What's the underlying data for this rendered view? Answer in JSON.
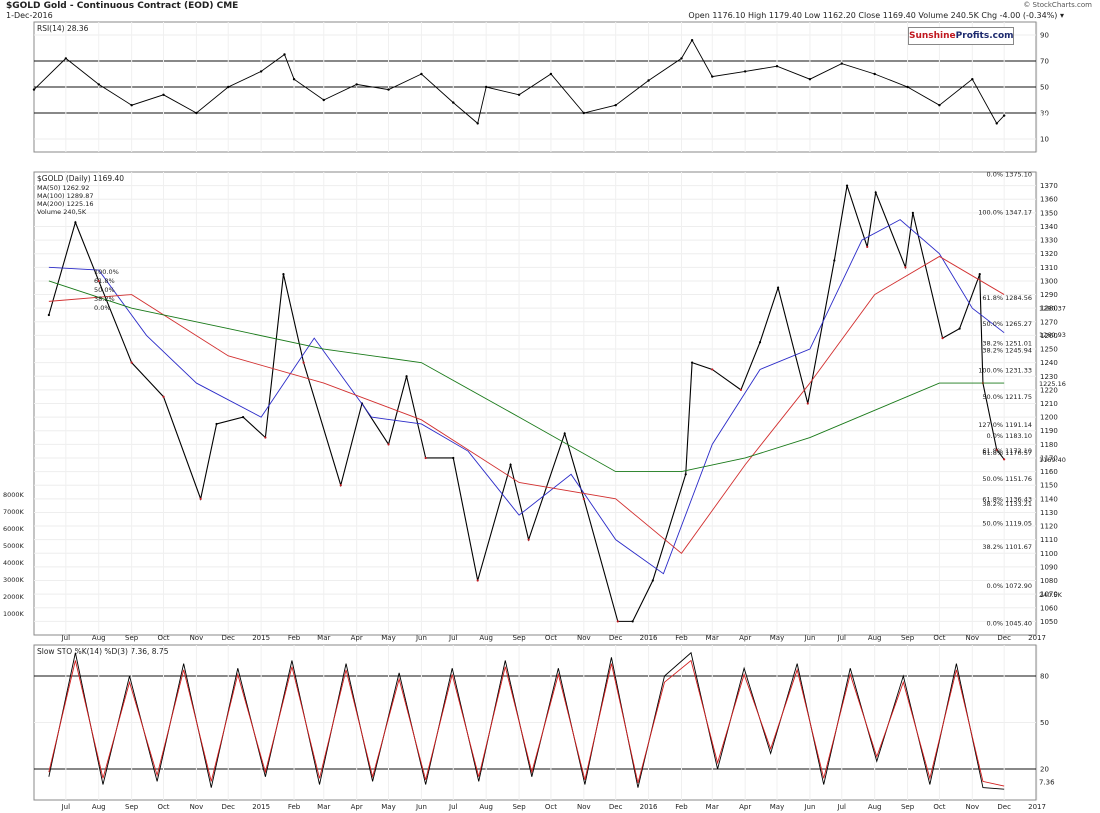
{
  "header": {
    "title": "$GOLD Gold - Continuous Contract (EOD) CME",
    "date": "1-Dec-2016",
    "source": "© StockCharts.com",
    "ohlc": "Open 1176.10 High 1179.40 Low 1162.20 Close 1169.40 Volume 240.5K Chg -4.00 (-0.34%) ▾"
  },
  "brand": {
    "part1": "Sunshine",
    "part2": "Profits.com"
  },
  "colors": {
    "price_up": "#000000",
    "price_down": "#c0181f",
    "ma50": "#2b2bc8",
    "ma100": "#d23030",
    "ma200": "#1a7a1a",
    "volume": "#d9a0a0",
    "trendline": "#d21e1e"
  },
  "chart_data": [
    {
      "type": "line",
      "title": "RSI(14) 28.36",
      "ylim": [
        0,
        100
      ],
      "yticks": [
        90,
        70,
        50,
        30,
        10
      ],
      "reference_lines": [
        70,
        50,
        30
      ],
      "last_value": 28.36,
      "last_label": "28.36",
      "series": [
        {
          "name": "RSI(14)",
          "x": [
            "2014-06-01",
            "2014-07-01",
            "2014-08-01",
            "2014-09-01",
            "2014-10-01",
            "2014-11-01",
            "2014-12-01",
            "2015-01-01",
            "2015-01-23",
            "2015-02-01",
            "2015-03-01",
            "2015-04-01",
            "2015-05-01",
            "2015-06-01",
            "2015-07-01",
            "2015-07-24",
            "2015-08-01",
            "2015-09-01",
            "2015-10-01",
            "2015-11-01",
            "2015-12-01",
            "2016-01-01",
            "2016-02-01",
            "2016-02-11",
            "2016-03-01",
            "2016-04-01",
            "2016-05-01",
            "2016-06-01",
            "2016-07-01",
            "2016-08-01",
            "2016-09-01",
            "2016-10-01",
            "2016-11-01",
            "2016-11-24",
            "2016-12-01"
          ],
          "y": [
            48,
            72,
            52,
            36,
            44,
            30,
            50,
            62,
            75,
            56,
            40,
            52,
            48,
            60,
            38,
            22,
            50,
            44,
            60,
            30,
            36,
            55,
            72,
            86,
            58,
            62,
            66,
            56,
            68,
            60,
            50,
            36,
            56,
            22,
            28
          ]
        }
      ]
    },
    {
      "type": "line",
      "title": "$GOLD (Daily) 1169.40",
      "legend": [
        "MA(50) 1262.92",
        "MA(100) 1289.87",
        "MA(200) 1225.16",
        "Volume 240,5K"
      ],
      "ylim": [
        1040,
        1380
      ],
      "yticks": [
        1050,
        1060,
        1070,
        1080,
        1090,
        1100,
        1110,
        1120,
        1130,
        1140,
        1150,
        1160,
        1170,
        1180,
        1190,
        1200,
        1210,
        1220,
        1230,
        1240,
        1250,
        1260,
        1270,
        1280,
        1290,
        1300,
        1310,
        1320,
        1330,
        1340,
        1350,
        1360,
        1370
      ],
      "x_months": [
        "Jul",
        "Aug",
        "Sep",
        "Oct",
        "Nov",
        "Dec",
        "2015",
        "Feb",
        "Mar",
        "Apr",
        "May",
        "Jun",
        "Jul",
        "Aug",
        "Sep",
        "Oct",
        "Nov",
        "Dec",
        "2016",
        "Feb",
        "Mar",
        "Apr",
        "May",
        "Jun",
        "Jul",
        "Aug",
        "Sep",
        "Oct",
        "Nov",
        "Dec",
        "2017"
      ],
      "fib_labels": [
        "0.0% 1375.10",
        "100.0% 1347.17",
        "61.8% 1284.56",
        "50.0% 1265.27",
        "38.2% 1245.94",
        "0.0% 1183.10",
        "100.0%",
        "61.8%",
        "50.0%",
        "38.2%",
        "0.0%",
        "100.0% 1231.33",
        "61.8% 1170.57",
        "50.0% 1151.76",
        "38.2% 1133.21",
        "0.0% 1072.90",
        "127.0% 1191.14",
        "61.8% 1136.43",
        "50.0% 1119.05",
        "38.2% 1101.67",
        "0.0% 1045.40",
        "38.2% 1251.01",
        "50.0% 1211.75",
        "61.8% 1172.10"
      ],
      "right_labels": [
        "1280.37",
        "1260.93",
        "1225.16",
        "1169.40"
      ],
      "volume_axis": [
        "8000K",
        "7000K",
        "6000K",
        "5000K",
        "4000K",
        "3000K",
        "2000K",
        "1000K"
      ],
      "volume_label": "240.5K",
      "series": [
        {
          "name": "$GOLD",
          "x": [
            "2014-06-15",
            "2014-07-10",
            "2014-08-01",
            "2014-09-01",
            "2014-10-01",
            "2014-11-05",
            "2014-11-20",
            "2014-12-15",
            "2015-01-05",
            "2015-01-22",
            "2015-02-10",
            "2015-03-17",
            "2015-04-06",
            "2015-05-01",
            "2015-05-18",
            "2015-06-05",
            "2015-07-01",
            "2015-07-24",
            "2015-08-24",
            "2015-09-10",
            "2015-10-14",
            "2015-11-01",
            "2015-12-03",
            "2015-12-17",
            "2016-01-05",
            "2016-02-05",
            "2016-02-11",
            "2016-03-01",
            "2016-03-28",
            "2016-04-15",
            "2016-05-02",
            "2016-05-30",
            "2016-06-24",
            "2016-07-06",
            "2016-07-25",
            "2016-08-02",
            "2016-08-30",
            "2016-09-06",
            "2016-10-04",
            "2016-10-20",
            "2016-11-08",
            "2016-11-11",
            "2016-11-24",
            "2016-12-01"
          ],
          "y": [
            1275,
            1343,
            1300,
            1240,
            1215,
            1140,
            1195,
            1200,
            1185,
            1305,
            1240,
            1150,
            1210,
            1180,
            1230,
            1170,
            1170,
            1080,
            1165,
            1110,
            1188,
            1140,
            1050,
            1050,
            1080,
            1158,
            1240,
            1235,
            1220,
            1255,
            1295,
            1210,
            1315,
            1370,
            1325,
            1365,
            1310,
            1350,
            1258,
            1265,
            1305,
            1225,
            1176,
            1169
          ]
        },
        {
          "name": "MA(50)",
          "x": [
            "2014-06-15",
            "2014-08-01",
            "2014-09-15",
            "2014-11-01",
            "2015-01-01",
            "2015-02-20",
            "2015-04-15",
            "2015-06-01",
            "2015-07-15",
            "2015-09-01",
            "2015-10-20",
            "2015-12-01",
            "2016-01-15",
            "2016-03-01",
            "2016-04-15",
            "2016-06-01",
            "2016-07-20",
            "2016-08-25",
            "2016-10-01",
            "2016-11-01",
            "2016-12-01"
          ],
          "y": [
            1310,
            1308,
            1260,
            1225,
            1200,
            1258,
            1200,
            1195,
            1175,
            1128,
            1158,
            1110,
            1085,
            1180,
            1235,
            1250,
            1330,
            1345,
            1320,
            1280,
            1262
          ]
        },
        {
          "name": "MA(100)",
          "x": [
            "2014-06-15",
            "2014-09-01",
            "2014-12-01",
            "2015-03-01",
            "2015-06-01",
            "2015-09-01",
            "2015-12-01",
            "2016-02-01",
            "2016-04-01",
            "2016-06-01",
            "2016-08-01",
            "2016-10-01",
            "2016-12-01"
          ],
          "y": [
            1285,
            1290,
            1245,
            1225,
            1198,
            1152,
            1140,
            1100,
            1165,
            1225,
            1290,
            1318,
            1290
          ]
        },
        {
          "name": "MA(200)",
          "x": [
            "2014-06-15",
            "2014-09-01",
            "2014-12-01",
            "2015-03-01",
            "2015-06-01",
            "2015-09-01",
            "2015-12-01",
            "2016-02-01",
            "2016-04-01",
            "2016-06-01",
            "2016-08-01",
            "2016-10-01",
            "2016-12-01"
          ],
          "y": [
            1300,
            1280,
            1265,
            1250,
            1240,
            1200,
            1160,
            1160,
            1170,
            1185,
            1205,
            1225,
            1225
          ]
        }
      ]
    },
    {
      "type": "line",
      "title": "Slow STO %K(14) %D(3) 7.36, 8.75",
      "ylim": [
        0,
        100
      ],
      "yticks": [
        80,
        50,
        20
      ],
      "reference_lines": [
        80,
        20
      ],
      "last_label": "7.36",
      "series": [
        {
          "name": "%K",
          "x": [
            "2014-06-15",
            "2014-07-10",
            "2014-08-05",
            "2014-08-30",
            "2014-09-25",
            "2014-10-20",
            "2014-11-15",
            "2014-12-10",
            "2015-01-05",
            "2015-01-30",
            "2015-02-25",
            "2015-03-22",
            "2015-04-16",
            "2015-05-11",
            "2015-06-05",
            "2015-06-30",
            "2015-07-25",
            "2015-08-19",
            "2015-09-13",
            "2015-10-08",
            "2015-11-02",
            "2015-11-27",
            "2015-12-22",
            "2016-01-16",
            "2016-02-10",
            "2016-03-06",
            "2016-03-31",
            "2016-04-25",
            "2016-05-20",
            "2016-06-14",
            "2016-07-09",
            "2016-08-03",
            "2016-08-28",
            "2016-09-22",
            "2016-10-17",
            "2016-11-11",
            "2016-12-01"
          ],
          "y": [
            15,
            95,
            10,
            80,
            12,
            88,
            8,
            85,
            15,
            90,
            10,
            88,
            12,
            82,
            10,
            85,
            12,
            90,
            15,
            85,
            10,
            92,
            8,
            80,
            95,
            20,
            85,
            30,
            88,
            10,
            85,
            25,
            80,
            10,
            88,
            8,
            7
          ]
        },
        {
          "name": "%D",
          "x": [
            "2014-06-15",
            "2014-07-10",
            "2014-08-05",
            "2014-08-30",
            "2014-09-25",
            "2014-10-20",
            "2014-11-15",
            "2014-12-10",
            "2015-01-05",
            "2015-01-30",
            "2015-02-25",
            "2015-03-22",
            "2015-04-16",
            "2015-05-11",
            "2015-06-05",
            "2015-06-30",
            "2015-07-25",
            "2015-08-19",
            "2015-09-13",
            "2015-10-08",
            "2015-11-02",
            "2015-11-27",
            "2015-12-22",
            "2016-01-16",
            "2016-02-10",
            "2016-03-06",
            "2016-03-31",
            "2016-04-25",
            "2016-05-20",
            "2016-06-14",
            "2016-07-09",
            "2016-08-03",
            "2016-08-28",
            "2016-09-22",
            "2016-10-17",
            "2016-11-11",
            "2016-12-01"
          ],
          "y": [
            18,
            90,
            14,
            76,
            16,
            84,
            12,
            81,
            18,
            86,
            14,
            84,
            15,
            78,
            13,
            81,
            15,
            86,
            18,
            81,
            13,
            88,
            11,
            76,
            90,
            24,
            81,
            33,
            84,
            14,
            81,
            28,
            76,
            14,
            84,
            12,
            9
          ]
        }
      ]
    }
  ]
}
